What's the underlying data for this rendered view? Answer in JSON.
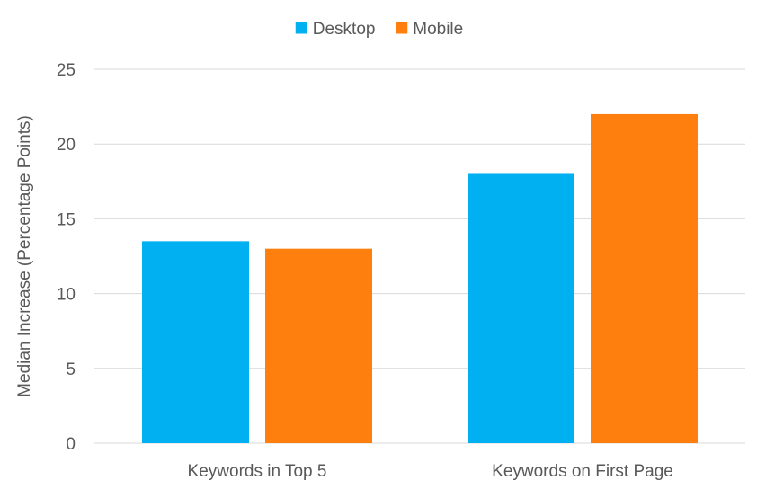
{
  "chart_data": {
    "type": "bar",
    "categories": [
      "Keywords in Top 5",
      "Keywords on First Page"
    ],
    "series": [
      {
        "name": "Desktop",
        "values": [
          13.5,
          18
        ],
        "color": "#00b0f0"
      },
      {
        "name": "Mobile",
        "values": [
          13,
          22
        ],
        "color": "#ff7f0e"
      }
    ],
    "ylabel": "Median Increase (Percentage Points)",
    "ylim": [
      0,
      25
    ],
    "yticks": [
      0,
      5,
      10,
      15,
      20,
      25
    ],
    "grid": true,
    "legend": "top-center"
  }
}
